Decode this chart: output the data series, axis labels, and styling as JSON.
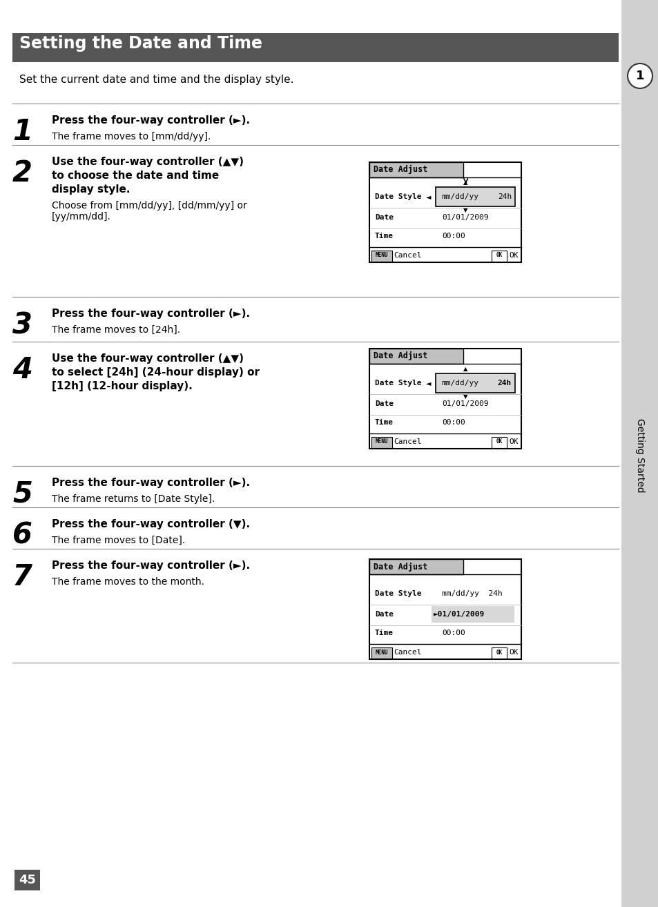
{
  "page_bg": "#ffffff",
  "sidebar_bg": "#d0d0d0",
  "header_bg": "#555555",
  "header_text": "Setting the Date and Time",
  "header_text_color": "#ffffff",
  "intro_text": "Set the current date and time and the display style.",
  "steps": [
    {
      "num": "1",
      "bold_text": "Press the four-way controller (►).",
      "normal_text": "The frame moves to [mm/dd/yy].",
      "has_screenshot": false
    },
    {
      "num": "2",
      "bold_text": "Use the four-way controller (▲▼)\nto choose the date and time\ndisplay style.",
      "normal_text": "Choose from [mm/dd/yy], [dd/mm/yy] or\n[yy/mm/dd].",
      "has_screenshot": true,
      "screenshot_type": "date_adjust_1"
    },
    {
      "num": "3",
      "bold_text": "Press the four-way controller (►).",
      "normal_text": "The frame moves to [24h].",
      "has_screenshot": false
    },
    {
      "num": "4",
      "bold_text": "Use the four-way controller (▲▼)\nto select [24h] (24-hour display) or\n[12h] (12-hour display).",
      "normal_text": "",
      "has_screenshot": true,
      "screenshot_type": "date_adjust_2"
    },
    {
      "num": "5",
      "bold_text": "Press the four-way controller (►).",
      "normal_text": "The frame returns to [Date Style].",
      "has_screenshot": false
    },
    {
      "num": "6",
      "bold_text": "Press the four-way controller (▼).",
      "normal_text": "The frame moves to [Date].",
      "has_screenshot": false
    },
    {
      "num": "7",
      "bold_text": "Press the four-way controller (►).",
      "normal_text": "The frame moves to the month.",
      "has_screenshot": true,
      "screenshot_type": "date_adjust_3"
    }
  ],
  "sidebar_label": "Getting Started",
  "page_number": "45"
}
